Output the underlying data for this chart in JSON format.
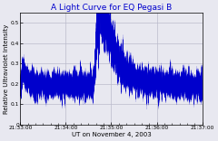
{
  "title": "A Light Curve for EQ Pegasi B",
  "xlabel": "UT on November 4, 2003",
  "ylabel": "Relative Ultraviolet Intensity",
  "xlim_seconds": [
    0,
    240
  ],
  "ylim": [
    0,
    0.55
  ],
  "yticks": [
    0,
    0.1,
    0.2,
    0.3,
    0.4,
    0.5
  ],
  "xtick_labels": [
    "21:33:00",
    "21:34:00",
    "21:35:00",
    "21:36:00",
    "21:37:00"
  ],
  "xtick_positions_seconds": [
    0,
    60,
    120,
    180,
    240
  ],
  "line_color": "#0000cc",
  "background_color": "#e8e8f0",
  "title_color": "#0000cc",
  "title_fontsize": 6.5,
  "label_fontsize": 5.0,
  "tick_fontsize": 4.2,
  "flare_peak_time": 102,
  "flare_peak_value": 0.49,
  "baseline": 0.195,
  "grid_color": "#bbbbcc"
}
